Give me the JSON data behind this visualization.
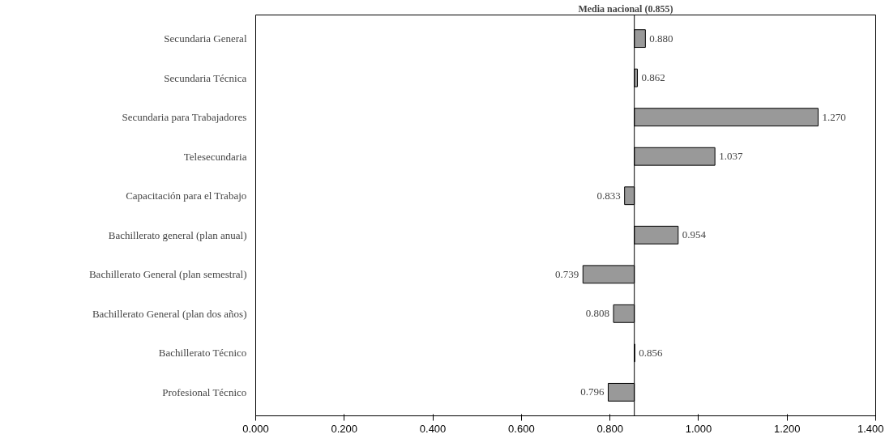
{
  "chart_data": {
    "type": "bar",
    "orientation": "horizontal",
    "categories": [
      "Secundaria General",
      "Secundaria Técnica",
      "Secundaria para Trabajadores",
      "Telesecundaria",
      "Capacitación para el Trabajo",
      "Bachillerato general (plan anual)",
      "Bachillerato General (plan semestral)",
      "Bachillerato General (plan dos años)",
      "Bachillerato Técnico",
      "Profesional Técnico"
    ],
    "base": [
      0.855,
      0.855,
      0.855,
      0.855,
      0.855,
      0.855,
      0.855,
      0.855,
      0.855,
      0.855
    ],
    "values": [
      0.025,
      0.007,
      0.415,
      0.182,
      -0.022,
      0.099,
      -0.116,
      -0.047,
      0.001,
      -0.059
    ],
    "value_labels": [
      "0.880",
      "0.862",
      "1.270",
      "1.037",
      "0.833",
      "0.954",
      "0.739",
      "0.808",
      "0.856",
      "0.796"
    ],
    "color": "#999999",
    "xlim": [
      0,
      1.4
    ],
    "xticks": [
      {
        "value": 0,
        "label": "0.000"
      },
      {
        "value": 0.2,
        "label": "0.200"
      },
      {
        "value": 0.4,
        "label": "0.400"
      },
      {
        "value": 0.6,
        "label": "0.600"
      },
      {
        "value": 0.8,
        "label": "0.800"
      },
      {
        "value": 1.0,
        "label": "1.000"
      },
      {
        "value": 1.2,
        "label": "1.200"
      },
      {
        "value": 1.4,
        "label": "1.400"
      }
    ],
    "ref_lines": [
      {
        "axis": "x",
        "value": 0.855,
        "label": "Media nacional (0.855)",
        "color": "#000000"
      }
    ],
    "grid": false
  }
}
